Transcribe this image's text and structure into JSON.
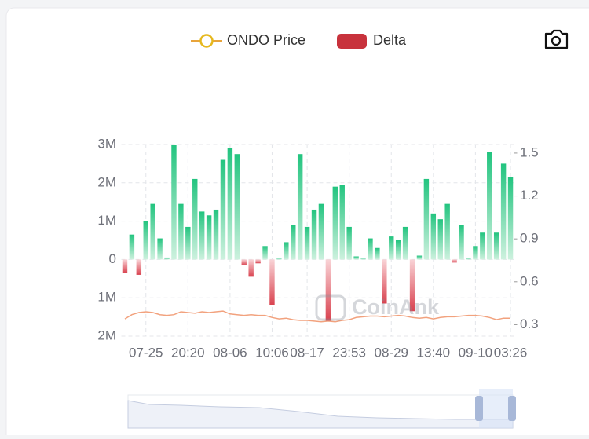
{
  "chart_data": {
    "type": "bar",
    "watermark": "CoinAnk",
    "categories": [
      null,
      null,
      null,
      "07-25",
      null,
      null,
      null,
      null,
      null,
      "20:20",
      null,
      null,
      null,
      null,
      null,
      "08-06",
      null,
      null,
      null,
      null,
      null,
      "10:06",
      null,
      null,
      null,
      null,
      "08-17",
      null,
      null,
      null,
      null,
      null,
      "23:53",
      null,
      null,
      null,
      null,
      null,
      "08-29",
      null,
      null,
      null,
      null,
      null,
      "13:40",
      null,
      null,
      null,
      null,
      null,
      "09-10",
      null,
      null,
      null,
      null,
      "03:26"
    ],
    "series": [
      {
        "name": "ONDO Price",
        "type": "line",
        "axis": "y2",
        "color": "#f2a27e",
        "values": [
          0.34,
          0.37,
          0.385,
          0.39,
          0.385,
          0.37,
          0.365,
          0.37,
          0.39,
          0.385,
          0.38,
          0.39,
          0.385,
          0.39,
          0.395,
          0.375,
          0.37,
          0.365,
          0.37,
          0.365,
          0.365,
          0.35,
          0.34,
          0.345,
          0.335,
          0.33,
          0.33,
          0.325,
          0.32,
          0.325,
          0.32,
          0.33,
          0.335,
          0.35,
          0.355,
          0.36,
          0.36,
          0.355,
          0.36,
          0.365,
          0.36,
          0.35,
          0.345,
          0.35,
          0.34,
          0.35,
          0.355,
          0.355,
          0.36,
          0.365,
          0.365,
          0.36,
          0.35,
          0.335,
          0.345,
          0.345
        ]
      },
      {
        "name": "Delta",
        "type": "bar",
        "color": "#c8323c",
        "up_color": "#22c47f",
        "down_color": "#d9424f",
        "values": [
          -350000,
          650000,
          -400000,
          1000000,
          1450000,
          550000,
          50000,
          3000000,
          1450000,
          850000,
          2100000,
          1250000,
          1150000,
          1300000,
          2600000,
          2900000,
          2750000,
          -150000,
          -450000,
          -100000,
          350000,
          -1200000,
          20000,
          450000,
          900000,
          2750000,
          850000,
          1300000,
          1450000,
          -1600000,
          1900000,
          1950000,
          850000,
          80000,
          20000,
          550000,
          300000,
          -1150000,
          600000,
          500000,
          850000,
          -1350000,
          100000,
          2100000,
          1200000,
          1050000,
          1450000,
          -80000,
          900000,
          20000,
          350000,
          700000,
          2800000,
          700000,
          2500000,
          2150000
        ]
      }
    ],
    "ylim": [
      -2000000,
      3000000
    ],
    "yticks": [
      {
        "value": 3000000,
        "label": "3M"
      },
      {
        "value": 2000000,
        "label": "2M"
      },
      {
        "value": 1000000,
        "label": "1M"
      },
      0,
      {
        "value": -1000000,
        "label": "1M"
      },
      {
        "value": -2000000,
        "label": "2M"
      }
    ],
    "y2lim": [
      0.22,
      1.56
    ],
    "y2ticks": [
      1.5,
      1.2,
      0.9,
      0.6,
      0.3
    ],
    "grid": true
  }
}
